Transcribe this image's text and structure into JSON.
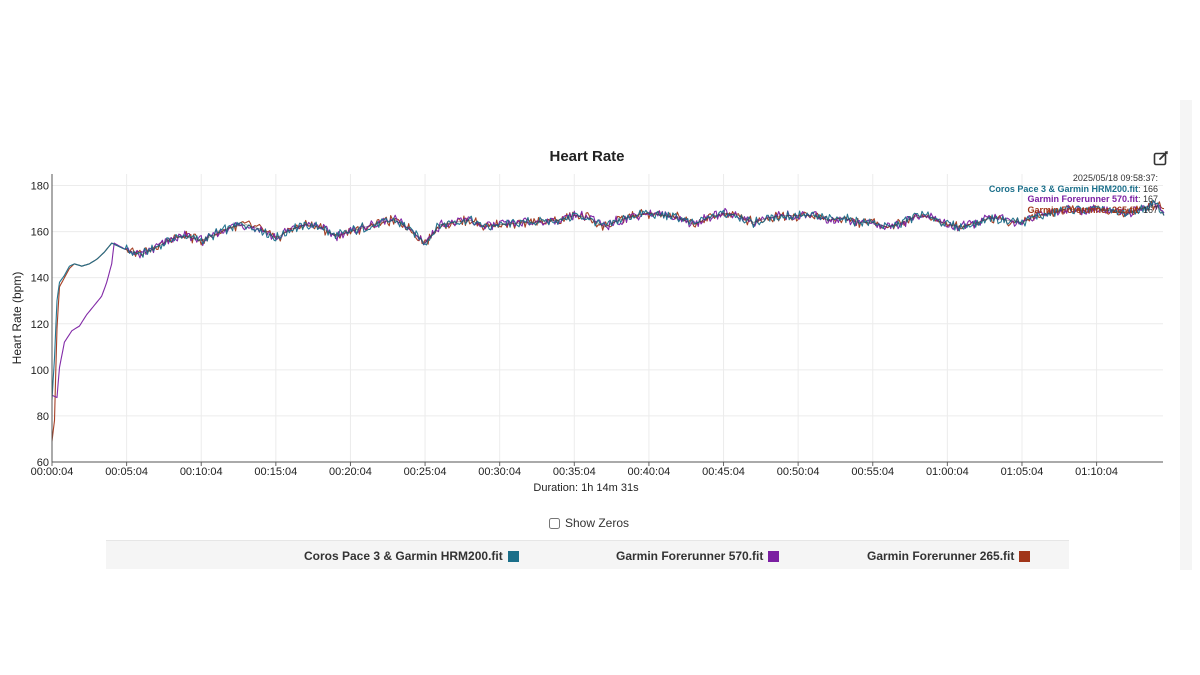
{
  "header": {
    "title": "Heart Rate"
  },
  "tooltip": {
    "time": "2025/05/18 09:58:37:",
    "rows": [
      {
        "name": "Coros Pace 3 & Garmin HRM200.fit",
        "value": ": 166",
        "color": "#1b6f8a"
      },
      {
        "name": "Garmin Forerunner 570.fit",
        "value": ": 167",
        "color": "#7b1fa2"
      },
      {
        "name": "Garmin Forerunner 265.fit",
        "value": ": 167",
        "color": "#a1361a"
      }
    ]
  },
  "controls": {
    "show_zeros_label": "Show Zeros",
    "show_zeros_checked": false
  },
  "chart_data": {
    "type": "line",
    "title": "Heart Rate",
    "xlabel": "Duration: 1h 14m 31s",
    "ylabel": "Heart Rate (bpm)",
    "ylim": [
      60,
      185
    ],
    "xlim_seconds": [
      4,
      4471
    ],
    "yticks": [
      60,
      80,
      100,
      120,
      140,
      160,
      180
    ],
    "xticks": [
      "00:00:04",
      "00:05:04",
      "00:10:04",
      "00:15:04",
      "00:20:04",
      "00:25:04",
      "00:30:04",
      "00:35:04",
      "00:40:04",
      "00:45:04",
      "00:50:04",
      "00:55:04",
      "01:00:04",
      "01:05:04",
      "01:10:04"
    ],
    "grid": true,
    "legend_position": "bottom",
    "series": [
      {
        "name": "Coros Pace 3 & Garmin HRM200.fit",
        "color": "#1b6f8a",
        "points": [
          [
            "00:00:04",
            87
          ],
          [
            "00:00:14",
            105
          ],
          [
            "00:00:24",
            130
          ],
          [
            "00:00:34",
            138
          ],
          [
            "00:00:54",
            141
          ],
          [
            "00:01:14",
            145
          ],
          [
            "00:01:34",
            146
          ],
          [
            "00:02:04",
            145
          ],
          [
            "00:02:34",
            146
          ],
          [
            "00:03:04",
            148
          ],
          [
            "00:03:34",
            151
          ],
          [
            "00:04:04",
            155
          ],
          [
            "00:05:04",
            152
          ],
          [
            "00:06:04",
            150
          ],
          [
            "00:07:04",
            153
          ],
          [
            "00:08:04",
            157
          ],
          [
            "00:09:04",
            158
          ],
          [
            "00:10:04",
            156
          ],
          [
            "00:11:04",
            159
          ],
          [
            "00:12:04",
            162
          ],
          [
            "00:13:04",
            163
          ],
          [
            "00:14:04",
            161
          ],
          [
            "00:15:04",
            157
          ],
          [
            "00:16:04",
            161
          ],
          [
            "00:17:04",
            163
          ],
          [
            "00:18:04",
            162
          ],
          [
            "00:19:04",
            158
          ],
          [
            "00:20:04",
            160
          ],
          [
            "00:21:04",
            162
          ],
          [
            "00:22:04",
            164
          ],
          [
            "00:23:04",
            165
          ],
          [
            "00:24:04",
            161
          ],
          [
            "00:25:04",
            155
          ],
          [
            "00:26:04",
            163
          ],
          [
            "00:27:04",
            164
          ],
          [
            "00:28:04",
            165
          ],
          [
            "00:29:04",
            162
          ],
          [
            "00:30:04",
            163
          ],
          [
            "00:32:04",
            164
          ],
          [
            "00:34:04",
            165
          ],
          [
            "00:35:04",
            167
          ],
          [
            "00:36:04",
            166
          ],
          [
            "00:37:04",
            162
          ],
          [
            "00:38:04",
            165
          ],
          [
            "00:39:04",
            167
          ],
          [
            "00:40:04",
            168
          ],
          [
            "00:41:04",
            167
          ],
          [
            "00:42:04",
            166
          ],
          [
            "00:43:04",
            163
          ],
          [
            "00:44:04",
            166
          ],
          [
            "00:45:04",
            168
          ],
          [
            "00:46:04",
            167
          ],
          [
            "00:47:04",
            164
          ],
          [
            "00:48:04",
            166
          ],
          [
            "00:49:04",
            167
          ],
          [
            "00:50:04",
            167
          ],
          [
            "00:51:04",
            167
          ],
          [
            "00:52:04",
            165
          ],
          [
            "00:53:04",
            166
          ],
          [
            "00:54:04",
            164
          ],
          [
            "00:55:04",
            164
          ],
          [
            "00:56:04",
            162
          ],
          [
            "00:57:04",
            164
          ],
          [
            "00:58:04",
            167
          ],
          [
            "00:59:04",
            166
          ],
          [
            "01:00:04",
            163
          ],
          [
            "01:01:04",
            162
          ],
          [
            "01:02:04",
            164
          ],
          [
            "01:03:04",
            166
          ],
          [
            "01:04:04",
            165
          ],
          [
            "01:05:04",
            164
          ],
          [
            "01:06:04",
            167
          ],
          [
            "01:07:04",
            168
          ],
          [
            "01:08:04",
            170
          ],
          [
            "01:09:04",
            169
          ],
          [
            "01:10:04",
            170
          ],
          [
            "01:11:04",
            169
          ],
          [
            "01:12:04",
            168
          ],
          [
            "01:13:04",
            170
          ],
          [
            "01:14:04",
            172
          ],
          [
            "01:14:35",
            167
          ]
        ]
      },
      {
        "name": "Garmin Forerunner 570.fit",
        "color": "#7b1fa2",
        "points": [
          [
            "00:00:04",
            89
          ],
          [
            "00:00:24",
            88
          ],
          [
            "00:00:34",
            101
          ],
          [
            "00:00:54",
            112
          ],
          [
            "00:01:24",
            117
          ],
          [
            "00:01:54",
            119
          ],
          [
            "00:02:24",
            124
          ],
          [
            "00:02:54",
            128
          ],
          [
            "00:03:24",
            132
          ],
          [
            "00:03:44",
            138
          ],
          [
            "00:04:04",
            146
          ],
          [
            "00:04:14",
            155
          ],
          [
            "00:05:04",
            152
          ],
          [
            "00:06:04",
            150
          ],
          [
            "00:07:04",
            153
          ],
          [
            "00:08:04",
            157
          ],
          [
            "00:09:04",
            158
          ],
          [
            "00:10:04",
            156
          ],
          [
            "00:11:04",
            159
          ],
          [
            "00:12:04",
            162
          ],
          [
            "00:13:04",
            163
          ],
          [
            "00:14:04",
            161
          ],
          [
            "00:15:04",
            157
          ],
          [
            "00:16:04",
            161
          ],
          [
            "00:17:04",
            163
          ],
          [
            "00:18:04",
            162
          ],
          [
            "00:19:04",
            158
          ],
          [
            "00:20:04",
            160
          ],
          [
            "00:21:04",
            162
          ],
          [
            "00:22:04",
            164
          ],
          [
            "00:23:04",
            165
          ],
          [
            "00:24:04",
            161
          ],
          [
            "00:25:04",
            155
          ],
          [
            "00:26:04",
            163
          ],
          [
            "00:27:04",
            164
          ],
          [
            "00:28:04",
            165
          ],
          [
            "00:29:04",
            162
          ],
          [
            "00:30:04",
            163
          ],
          [
            "00:32:04",
            164
          ],
          [
            "00:34:04",
            165
          ],
          [
            "00:35:04",
            167
          ],
          [
            "00:36:04",
            166
          ],
          [
            "00:37:04",
            162
          ],
          [
            "00:38:04",
            165
          ],
          [
            "00:39:04",
            167
          ],
          [
            "00:40:04",
            168
          ],
          [
            "00:41:04",
            167
          ],
          [
            "00:42:04",
            166
          ],
          [
            "00:43:04",
            163
          ],
          [
            "00:44:04",
            166
          ],
          [
            "00:45:04",
            168
          ],
          [
            "00:46:04",
            167
          ],
          [
            "00:47:04",
            164
          ],
          [
            "00:48:04",
            166
          ],
          [
            "00:49:04",
            167
          ],
          [
            "00:50:04",
            167
          ],
          [
            "00:51:04",
            167
          ],
          [
            "00:52:04",
            165
          ],
          [
            "00:53:04",
            166
          ],
          [
            "00:54:04",
            164
          ],
          [
            "00:55:04",
            164
          ],
          [
            "00:56:04",
            162
          ],
          [
            "00:57:04",
            164
          ],
          [
            "00:58:04",
            167
          ],
          [
            "00:59:04",
            166
          ],
          [
            "01:00:04",
            163
          ],
          [
            "01:01:04",
            162
          ],
          [
            "01:02:04",
            164
          ],
          [
            "01:03:04",
            166
          ],
          [
            "01:04:04",
            165
          ],
          [
            "01:05:04",
            164
          ],
          [
            "01:06:04",
            167
          ],
          [
            "01:07:04",
            168
          ],
          [
            "01:08:04",
            170
          ],
          [
            "01:09:04",
            169
          ],
          [
            "01:10:04",
            170
          ],
          [
            "01:11:04",
            169
          ],
          [
            "01:12:04",
            168
          ],
          [
            "01:13:04",
            170
          ],
          [
            "01:14:04",
            172
          ],
          [
            "01:14:35",
            168
          ]
        ]
      },
      {
        "name": "Garmin Forerunner 265.fit",
        "color": "#a1361a",
        "points": [
          [
            "00:00:04",
            69
          ],
          [
            "00:00:14",
            78
          ],
          [
            "00:00:24",
            118
          ],
          [
            "00:00:34",
            136
          ],
          [
            "00:00:54",
            140
          ],
          [
            "00:01:14",
            144
          ],
          [
            "00:01:34",
            146
          ],
          [
            "00:02:04",
            145
          ],
          [
            "00:02:34",
            146
          ],
          [
            "00:03:04",
            148
          ],
          [
            "00:03:34",
            151
          ],
          [
            "00:04:04",
            155
          ],
          [
            "00:05:04",
            152
          ],
          [
            "00:06:04",
            150
          ],
          [
            "00:07:04",
            153
          ],
          [
            "00:08:04",
            157
          ],
          [
            "00:09:04",
            158
          ],
          [
            "00:10:04",
            156
          ],
          [
            "00:11:04",
            159
          ],
          [
            "00:12:04",
            162
          ],
          [
            "00:13:04",
            163
          ],
          [
            "00:14:04",
            161
          ],
          [
            "00:15:04",
            157
          ],
          [
            "00:16:04",
            161
          ],
          [
            "00:17:04",
            163
          ],
          [
            "00:18:04",
            162
          ],
          [
            "00:19:04",
            158
          ],
          [
            "00:20:04",
            160
          ],
          [
            "00:21:04",
            162
          ],
          [
            "00:22:04",
            164
          ],
          [
            "00:23:04",
            165
          ],
          [
            "00:24:04",
            161
          ],
          [
            "00:25:04",
            155
          ],
          [
            "00:26:04",
            163
          ],
          [
            "00:27:04",
            164
          ],
          [
            "00:28:04",
            165
          ],
          [
            "00:29:04",
            162
          ],
          [
            "00:30:04",
            163
          ],
          [
            "00:32:04",
            164
          ],
          [
            "00:34:04",
            165
          ],
          [
            "00:35:04",
            167
          ],
          [
            "00:36:04",
            166
          ],
          [
            "00:37:04",
            162
          ],
          [
            "00:38:04",
            165
          ],
          [
            "00:39:04",
            167
          ],
          [
            "00:40:04",
            168
          ],
          [
            "00:41:04",
            167
          ],
          [
            "00:42:04",
            166
          ],
          [
            "00:43:04",
            163
          ],
          [
            "00:44:04",
            166
          ],
          [
            "00:45:04",
            168
          ],
          [
            "00:46:04",
            167
          ],
          [
            "00:47:04",
            164
          ],
          [
            "00:48:04",
            166
          ],
          [
            "00:49:04",
            167
          ],
          [
            "00:50:04",
            167
          ],
          [
            "00:51:04",
            167
          ],
          [
            "00:52:04",
            165
          ],
          [
            "00:53:04",
            166
          ],
          [
            "00:54:04",
            164
          ],
          [
            "00:55:04",
            164
          ],
          [
            "00:56:04",
            162
          ],
          [
            "00:57:04",
            164
          ],
          [
            "00:58:04",
            167
          ],
          [
            "00:59:04",
            166
          ],
          [
            "01:00:04",
            163
          ],
          [
            "01:01:04",
            162
          ],
          [
            "01:02:04",
            164
          ],
          [
            "01:03:04",
            166
          ],
          [
            "01:04:04",
            165
          ],
          [
            "01:05:04",
            164
          ],
          [
            "01:06:04",
            167
          ],
          [
            "01:07:04",
            168
          ],
          [
            "01:08:04",
            170
          ],
          [
            "01:09:04",
            169
          ],
          [
            "01:10:04",
            170
          ],
          [
            "01:11:04",
            169
          ],
          [
            "01:12:04",
            168
          ],
          [
            "01:13:04",
            170
          ],
          [
            "01:14:04",
            172
          ],
          [
            "01:14:35",
            170
          ]
        ]
      }
    ]
  },
  "legend": {
    "items": [
      {
        "label": "Coros Pace 3 & Garmin HRM200.fit",
        "color": "#1b6f8a"
      },
      {
        "label": "Garmin Forerunner 570.fit",
        "color": "#7b1fa2"
      },
      {
        "label": "Garmin Forerunner 265.fit",
        "color": "#a1361a"
      }
    ]
  }
}
